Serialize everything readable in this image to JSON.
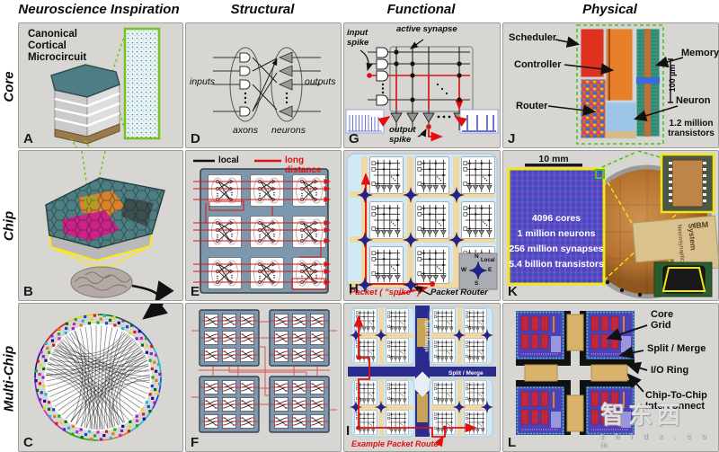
{
  "figure": {
    "column_headers": [
      "Neuroscience Inspiration",
      "Structural",
      "Functional",
      "Physical"
    ],
    "row_labels": [
      "Core",
      "Chip",
      "Multi-Chip"
    ]
  },
  "panels": {
    "A": {
      "letter": "A",
      "title": "Canonical\nCortical\nMicrocircuit"
    },
    "B": {
      "letter": "B"
    },
    "C": {
      "letter": "C"
    },
    "D": {
      "letter": "D",
      "inputs": "inputs",
      "outputs": "outputs",
      "axons": "axons",
      "neurons": "neurons"
    },
    "E": {
      "letter": "E",
      "legend_local": "local",
      "legend_long": "long distance"
    },
    "F": {
      "letter": "F"
    },
    "G": {
      "letter": "G",
      "input_spike": "input\nspike",
      "active_synapse": "active synapse",
      "output_spike": "output\nspike"
    },
    "H": {
      "letter": "H",
      "packet": "Packet ( \"spike\" )",
      "packet_router": "Packet Router",
      "compass_n": "N",
      "compass_s": "S",
      "compass_e": "E",
      "compass_w": "W",
      "compass_local": "Local"
    },
    "I": {
      "letter": "I",
      "split_merge": "Split / Merge",
      "split_merge_v": "Split / Merge",
      "example_route": "Example Packet Route"
    },
    "J": {
      "letter": "J",
      "scheduler": "Scheduler",
      "controller": "Controller",
      "memory": "Memory",
      "router": "Router",
      "neuron": "Neuron",
      "scale_bar": "100 µm",
      "transistors": "1.2 million\ntransistors"
    },
    "K": {
      "letter": "K",
      "scale_bar": "10 mm",
      "stats": [
        "4096 cores",
        "1 million neurons",
        "256 million synapses",
        "5.4 billion transistors"
      ],
      "package_brand": "IBM",
      "package_line1": "Neurosynaptic",
      "package_line2": "System"
    },
    "L": {
      "letter": "L",
      "core_grid": "Core\nGrid",
      "split_merge": "Split / Merge",
      "io_ring": "I/O Ring",
      "chip_interconnect": "Chip-To-Chip\nInterconnect"
    }
  },
  "watermark": {
    "text": "智东西",
    "subtext": "z h i d x . c o m"
  },
  "colors": {
    "panel_bg": "#d7d6d3",
    "navy": "#232290",
    "red": "#e01010",
    "tan": "#f0d7a4",
    "light_blue": "#cfe9f7",
    "blue_gray": "#7d98ac",
    "yellow": "#f5e612",
    "green_accent": "#77c21e",
    "die_blue": "#4646bc",
    "copper": "#b5722f",
    "connectome_palette": [
      "#1fa91f",
      "#1f3fd0",
      "#d01f1f",
      "#d01fd0",
      "#1fb9c9",
      "#d9d91f",
      "#8a1fd0",
      "#e07a1f",
      "#0a6a0a",
      "#101090"
    ]
  }
}
